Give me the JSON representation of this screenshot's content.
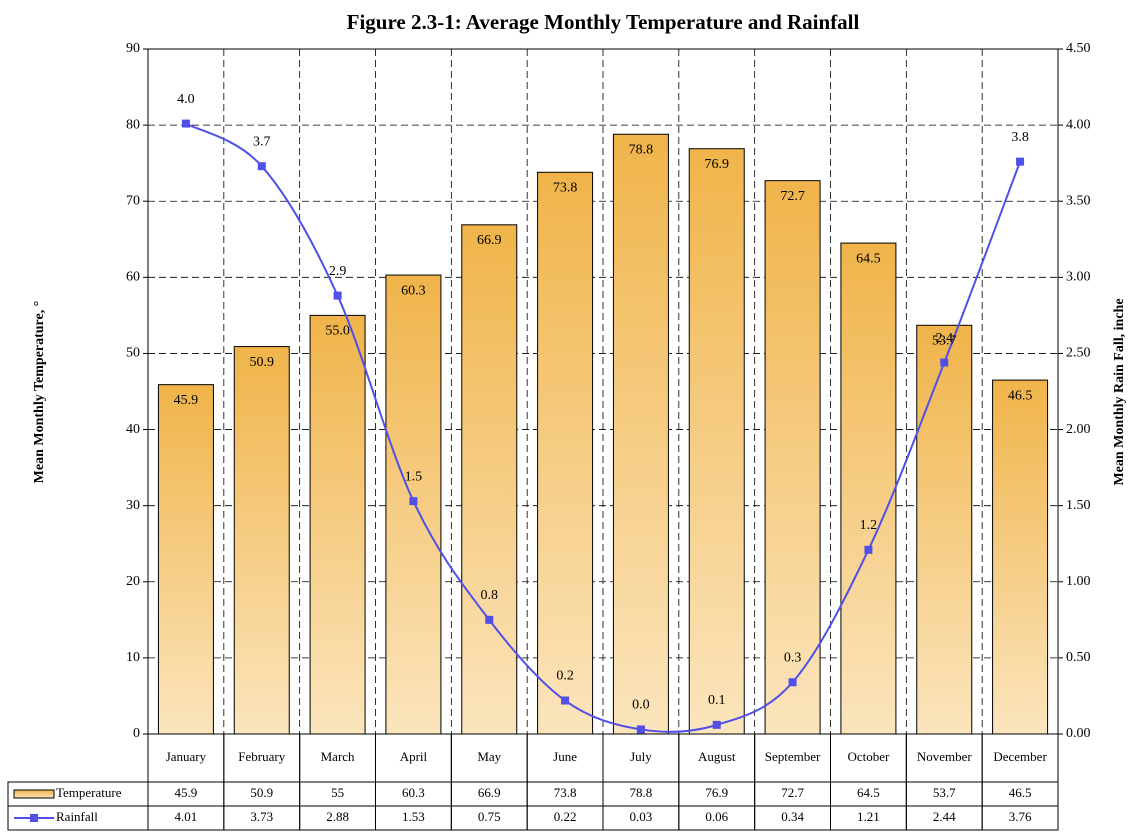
{
  "chart_data": {
    "type": "combo",
    "title": "Figure 2.3-1: Average Monthly Temperature and Rainfall",
    "y_label": "Mean Monthly Temperature, °",
    "y2_label": "Mean Monthly Rain Fall, inche",
    "categories": [
      "January",
      "February",
      "March",
      "April",
      "May",
      "June",
      "July",
      "August",
      "September",
      "October",
      "November",
      "December"
    ],
    "series": [
      {
        "name": "Temperature",
        "type": "bar",
        "color": "#f0b44a",
        "values": [
          45.9,
          50.9,
          55,
          60.3,
          66.9,
          73.8,
          78.8,
          76.9,
          72.7,
          64.5,
          53.7,
          46.5
        ],
        "value_labels": [
          "45.9",
          "50.9",
          "55.0",
          "60.3",
          "66.9",
          "73.8",
          "78.8",
          "76.9",
          "72.7",
          "64.5",
          "53.7",
          "46.5"
        ]
      },
      {
        "name": "Rainfall",
        "type": "line",
        "axis": "y2",
        "color": "#5050e8",
        "values": [
          4.01,
          3.73,
          2.88,
          1.53,
          0.75,
          0.22,
          0.03,
          0.06,
          0.34,
          1.21,
          2.44,
          3.76
        ],
        "value_labels": [
          "4.0",
          "3.7",
          "2.9",
          "1.5",
          "0.8",
          "0.2",
          "0.0",
          "0.1",
          "0.3",
          "1.2",
          "2.4",
          "3.8"
        ]
      }
    ],
    "ylim": [
      0,
      90
    ],
    "yticks": [
      0,
      10,
      20,
      30,
      40,
      50,
      60,
      70,
      80,
      90
    ],
    "y2lim": [
      0,
      4.5
    ],
    "y2ticks": [
      {
        "value": 0,
        "label": "0.00"
      },
      {
        "value": 0.5,
        "label": "0.50"
      },
      {
        "value": 1,
        "label": "1.00"
      },
      {
        "value": 1.5,
        "label": "1.50"
      },
      {
        "value": 2,
        "label": "2.00"
      },
      {
        "value": 2.5,
        "label": "2.50"
      },
      {
        "value": 3,
        "label": "3.00"
      },
      {
        "value": 3.5,
        "label": "3.50"
      },
      {
        "value": 4,
        "label": "4.00"
      },
      {
        "value": 4.5,
        "label": "4.50"
      }
    ],
    "grid": true
  }
}
